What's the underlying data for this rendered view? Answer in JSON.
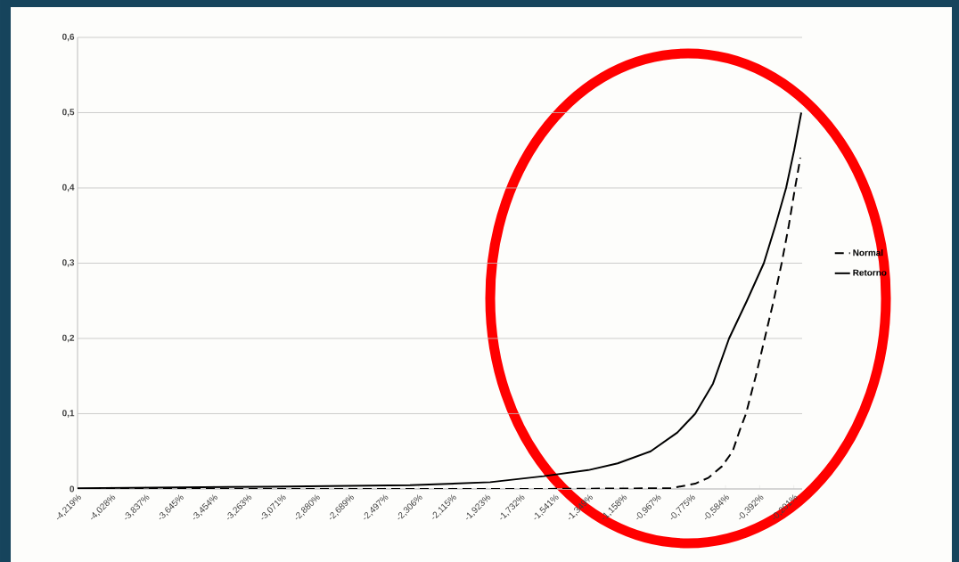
{
  "chart_data": {
    "type": "line",
    "xlim": [
      -4.219,
      -0.154
    ],
    "xticks": [
      {
        "value": -4.219,
        "label": "-4,219%"
      },
      {
        "value": -4.028,
        "label": "-4,028%"
      },
      {
        "value": -3.837,
        "label": "-3,837%"
      },
      {
        "value": -3.645,
        "label": "-3,645%"
      },
      {
        "value": -3.454,
        "label": "-3,454%"
      },
      {
        "value": -3.263,
        "label": "-3,263%"
      },
      {
        "value": -3.071,
        "label": "-3,071%"
      },
      {
        "value": -2.88,
        "label": "-2,880%"
      },
      {
        "value": -2.689,
        "label": "-2,689%"
      },
      {
        "value": -2.497,
        "label": "-2,497%"
      },
      {
        "value": -2.306,
        "label": "-2,306%"
      },
      {
        "value": -2.115,
        "label": "-2,115%"
      },
      {
        "value": -1.923,
        "label": "-1,923%"
      },
      {
        "value": -1.732,
        "label": "-1,732%"
      },
      {
        "value": -1.541,
        "label": "-1,541%"
      },
      {
        "value": -1.349,
        "label": "-1,349%"
      },
      {
        "value": -1.158,
        "label": "-1,158%"
      },
      {
        "value": -0.967,
        "label": "-0,967%"
      },
      {
        "value": -0.775,
        "label": "-0,775%"
      },
      {
        "value": -0.584,
        "label": "-0,584%"
      },
      {
        "value": -0.392,
        "label": "-0,392%"
      },
      {
        "value": -0.201,
        "label": "-0,201%"
      }
    ],
    "ylim": [
      0,
      0.6
    ],
    "yticks": [
      {
        "value": 0,
        "label": "0"
      },
      {
        "value": 0.1,
        "label": "0,1"
      },
      {
        "value": 0.2,
        "label": "0,2"
      },
      {
        "value": 0.3,
        "label": "0,3"
      },
      {
        "value": 0.4,
        "label": "0,4"
      },
      {
        "value": 0.5,
        "label": "0,5"
      },
      {
        "value": 0.6,
        "label": "0,6"
      }
    ],
    "grid": "y",
    "legend": "right",
    "marker": "none",
    "series": [
      {
        "name": "Normal",
        "color": "#000000",
        "line_style": "dashed",
        "x": [
          -4.219,
          -1.654,
          -0.889,
          -0.754,
          -0.679,
          -0.604,
          -0.544,
          -0.504,
          -0.469,
          -0.414,
          -0.364,
          -0.314,
          -0.269,
          -0.229,
          -0.194,
          -0.164
        ],
        "values": [
          0,
          0,
          0.001,
          0.007,
          0.015,
          0.03,
          0.05,
          0.078,
          0.1,
          0.15,
          0.2,
          0.25,
          0.3,
          0.35,
          0.4,
          0.44
        ]
      },
      {
        "name": "Retorno",
        "color": "#000000",
        "line_style": "solid",
        "x": [
          -4.219,
          -3.154,
          -2.354,
          -1.904,
          -1.604,
          -1.354,
          -1.189,
          -1.004,
          -0.854,
          -0.754,
          -0.654,
          -0.564,
          -0.464,
          -0.369,
          -0.304,
          -0.244,
          -0.199,
          -0.159
        ],
        "values": [
          0.001,
          0.003,
          0.005,
          0.009,
          0.017,
          0.025,
          0.034,
          0.05,
          0.075,
          0.1,
          0.14,
          0.2,
          0.25,
          0.3,
          0.35,
          0.4,
          0.45,
          0.5
        ]
      }
    ]
  }
}
